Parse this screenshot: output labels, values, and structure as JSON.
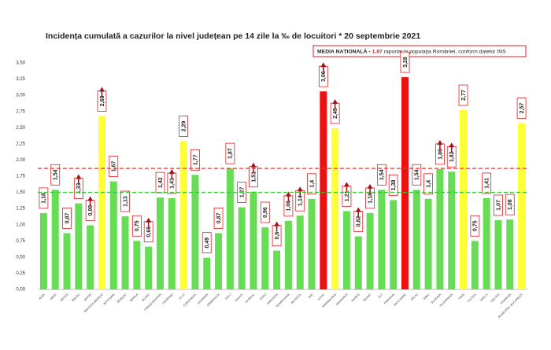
{
  "chart_data": {
    "type": "bar",
    "title": "Incidența cumulată a cazurilor la nivel județean pe 14 zile la ‰ de locuitori * 20 septembrie 2021",
    "legend": {
      "label": "MEDIA NAȚIONALĂ -",
      "value": 1.87,
      "value_label": "1,87",
      "note": "raportat la populația României, conform datelor INS",
      "color": "#e03a3a"
    },
    "threshold": {
      "value": 1.5,
      "color": "#3cc03c"
    },
    "categories": [
      "ALBA",
      "ARAD",
      "ARGEȘ",
      "BACĂU",
      "BIHOR",
      "BISTRIȚA-NĂSĂUD",
      "BOTOȘANI",
      "BRAȘOV",
      "BRĂILA",
      "BUZĂU",
      "CARAȘ-SEVERIN",
      "CĂLĂRAȘI",
      "CLUJ",
      "CONSTANȚA",
      "COVASNA",
      "DÂMBOVIȚA",
      "DOLJ",
      "GALAȚI",
      "GIURGIU",
      "GORJ",
      "HARGHITA",
      "HUNEDOARA",
      "IALOMIȚA",
      "IAȘI",
      "ILFOV",
      "MARAMUREȘ",
      "MEHEDINȚI",
      "MUREȘ",
      "NEAMȚ",
      "OLT",
      "PRAHOVA",
      "SATU MARE",
      "SĂLAJ",
      "SIBIU",
      "SUCEAVA",
      "TELEORMAN",
      "TIMIȘ",
      "TULCEA",
      "VASLUI",
      "VÂLCEA",
      "VRANCEA",
      "MUNICIPIUL BUCUREȘTI"
    ],
    "values": [
      1.18,
      1.54,
      0.87,
      1.33,
      0.99,
      2.68,
      1.67,
      1.13,
      0.75,
      0.66,
      1.42,
      1.41,
      2.29,
      1.77,
      0.49,
      0.87,
      1.87,
      1.27,
      1.51,
      0.96,
      0.6,
      1.06,
      1.14,
      1.4,
      3.06,
      2.49,
      1.21,
      0.82,
      1.18,
      1.54,
      1.38,
      3.28,
      1.54,
      1.4,
      1.86,
      1.82,
      2.77,
      0.75,
      1.41,
      1.07,
      1.08,
      2.57
    ],
    "value_labels": [
      "1,18",
      "1,54",
      "0,87",
      "1,33",
      "0,99",
      "2,68",
      "1,67",
      "1,13",
      "0,75",
      "0,66",
      "1,42",
      "1,41",
      "2,29",
      "1,77",
      "0,49",
      "0,87",
      "1,87",
      "1,27",
      "1,51",
      "0,96",
      "0,6",
      "1,06",
      "1,14",
      "1,4",
      "3,06",
      "2,49",
      "1,21",
      "0,82",
      "1,18",
      "1,54",
      "1,38",
      "3,28",
      "1,54",
      "1,4",
      "1,86",
      "1,82",
      "2,77",
      "0,75",
      "1,41",
      "1,07",
      "1,08",
      "2,57"
    ],
    "colors": [
      "#66dd55",
      "#66dd55",
      "#66dd55",
      "#66dd55",
      "#66dd55",
      "#ffff33",
      "#66dd55",
      "#66dd55",
      "#66dd55",
      "#66dd55",
      "#66dd55",
      "#66dd55",
      "#ffff33",
      "#66dd55",
      "#66dd55",
      "#66dd55",
      "#66dd55",
      "#66dd55",
      "#66dd55",
      "#66dd55",
      "#66dd55",
      "#66dd55",
      "#66dd55",
      "#66dd55",
      "#ee1111",
      "#ffff33",
      "#66dd55",
      "#66dd55",
      "#66dd55",
      "#66dd55",
      "#66dd55",
      "#ee1111",
      "#66dd55",
      "#66dd55",
      "#66dd55",
      "#66dd55",
      "#ffff33",
      "#66dd55",
      "#66dd55",
      "#66dd55",
      "#66dd55",
      "#ffff33"
    ],
    "trend_up": [
      false,
      false,
      false,
      true,
      true,
      true,
      false,
      false,
      false,
      true,
      false,
      true,
      false,
      false,
      false,
      false,
      false,
      false,
      true,
      false,
      true,
      true,
      true,
      false,
      true,
      true,
      true,
      true,
      true,
      false,
      false,
      false,
      false,
      false,
      true,
      true,
      false,
      false,
      false,
      false,
      false,
      false
    ],
    "ylim": [
      0,
      3.5
    ],
    "yticks": [
      {
        "value": 0,
        "label": "0,00"
      },
      {
        "value": 0.25,
        "label": "0,25"
      },
      {
        "value": 0.5,
        "label": "0,50"
      },
      {
        "value": 0.75,
        "label": "0,75"
      },
      {
        "value": 1,
        "label": "1,00"
      },
      {
        "value": 1.25,
        "label": "1,25"
      },
      {
        "value": 1.5,
        "label": "1,50"
      },
      {
        "value": 1.75,
        "label": "1,75"
      },
      {
        "value": 2,
        "label": "2,00"
      },
      {
        "value": 2.25,
        "label": "2,25"
      },
      {
        "value": 2.5,
        "label": "2,50"
      },
      {
        "value": 2.75,
        "label": "2,75"
      },
      {
        "value": 3,
        "label": "3,00"
      },
      {
        "value": 3.25,
        "label": "3,25"
      },
      {
        "value": 3.5,
        "label": "3,50"
      }
    ]
  }
}
